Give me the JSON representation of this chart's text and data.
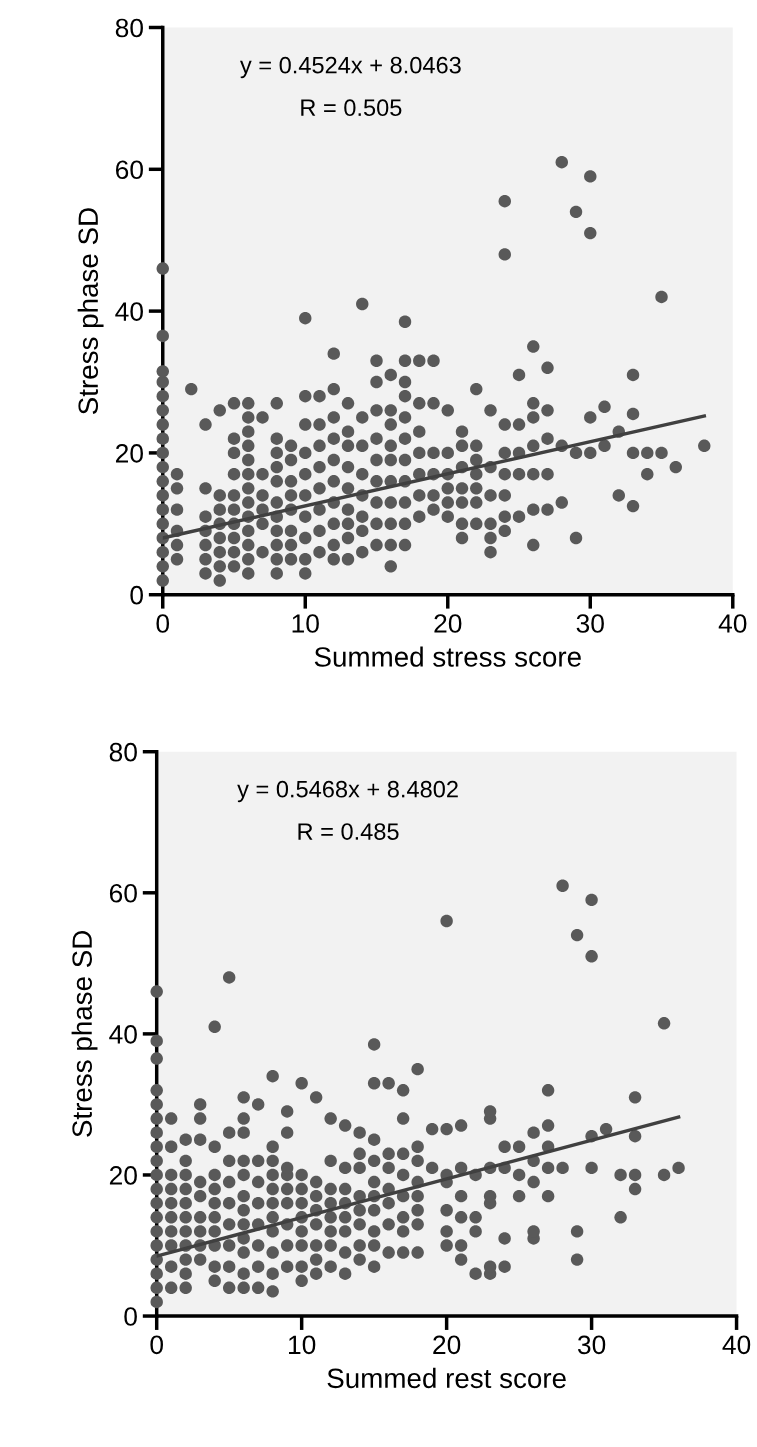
{
  "chart_data": [
    {
      "type": "scatter",
      "xlabel": "Summed stress score",
      "ylabel": "Stress phase SD",
      "xlim": [
        0,
        40
      ],
      "ylim": [
        0,
        80
      ],
      "xticks": [
        0,
        10,
        20,
        30,
        40
      ],
      "yticks": [
        0,
        20,
        40,
        60,
        80
      ],
      "grid": false,
      "annotations": [
        "y = 0.4524x + 8.0463",
        "R = 0.505"
      ],
      "series": [
        {
          "marker": "circle",
          "color": "#595959",
          "x": [
            0,
            0,
            0,
            0,
            0,
            0,
            0,
            0,
            0,
            0,
            0,
            0,
            0,
            0,
            0,
            0,
            0,
            0,
            1,
            1,
            1,
            1,
            1,
            1,
            2,
            3,
            3,
            3,
            3,
            3,
            3,
            3,
            4,
            4,
            4,
            4,
            4,
            4,
            4,
            4,
            5,
            5,
            5,
            5,
            5,
            5,
            5,
            5,
            5,
            5,
            6,
            6,
            6,
            6,
            6,
            6,
            6,
            6,
            6,
            6,
            6,
            6,
            6,
            7,
            7,
            7,
            7,
            7,
            7,
            8,
            8,
            8,
            8,
            8,
            8,
            8,
            8,
            8,
            8,
            8,
            9,
            9,
            9,
            9,
            9,
            9,
            9,
            9,
            10,
            10,
            10,
            10,
            10,
            10,
            10,
            10,
            10,
            10,
            11,
            11,
            11,
            11,
            11,
            11,
            11,
            11,
            12,
            12,
            12,
            12,
            12,
            12,
            12,
            12,
            12,
            12,
            13,
            13,
            13,
            13,
            13,
            13,
            13,
            13,
            13,
            14,
            14,
            14,
            14,
            14,
            14,
            14,
            14,
            15,
            15,
            15,
            15,
            15,
            15,
            15,
            15,
            15,
            16,
            16,
            16,
            16,
            16,
            16,
            16,
            16,
            16,
            16,
            17,
            17,
            17,
            17,
            17,
            17,
            17,
            17,
            17,
            17,
            17,
            18,
            18,
            18,
            18,
            18,
            18,
            18,
            19,
            19,
            19,
            19,
            19,
            19,
            20,
            20,
            20,
            20,
            20,
            20,
            21,
            21,
            21,
            21,
            21,
            21,
            21,
            22,
            22,
            22,
            22,
            22,
            22,
            22,
            23,
            23,
            23,
            23,
            23,
            23,
            24,
            24,
            24,
            24,
            24,
            24,
            24,
            24,
            25,
            25,
            25,
            25,
            25,
            26,
            26,
            26,
            26,
            26,
            26,
            26,
            27,
            27,
            27,
            27,
            27,
            28,
            28,
            28,
            29,
            29,
            29,
            30,
            30,
            30,
            30,
            31,
            31,
            32,
            32,
            33,
            33,
            33,
            33,
            34,
            34,
            35,
            35,
            36,
            38
          ],
          "values": [
            2,
            4,
            6,
            8,
            10,
            12,
            14,
            16,
            18,
            20,
            22,
            24,
            26,
            28,
            30,
            31.5,
            36.5,
            46,
            5,
            7,
            9,
            12,
            15,
            17,
            29,
            3,
            5,
            7,
            9,
            11,
            15,
            24,
            2,
            4,
            6,
            8,
            10,
            12,
            14,
            26,
            4,
            6,
            8,
            10,
            12,
            14,
            17,
            20,
            22,
            27,
            3,
            5,
            7,
            9,
            11,
            13,
            15,
            17,
            19,
            21,
            23,
            25,
            27,
            6,
            10,
            12,
            14,
            17,
            25,
            3,
            5,
            7,
            9,
            11,
            13,
            16,
            18,
            20,
            22,
            27,
            5,
            7,
            9,
            12,
            14,
            16,
            19,
            21,
            3,
            5,
            8,
            11,
            14,
            17,
            20,
            24,
            28,
            39,
            6,
            9,
            12,
            15,
            18,
            21,
            24,
            28,
            5,
            7,
            10,
            13,
            16,
            19,
            22,
            25,
            29,
            34,
            5,
            8,
            10,
            12,
            15,
            18,
            21,
            23,
            27,
            6,
            9,
            11,
            14,
            17,
            21,
            25,
            41,
            7,
            10,
            13,
            16,
            19,
            22,
            26,
            30,
            33,
            4,
            7,
            10,
            13,
            16,
            19,
            21,
            24,
            26,
            31,
            7,
            10,
            13,
            16,
            19,
            22,
            25,
            28,
            30,
            33,
            38.5,
            11,
            14,
            17,
            20,
            23,
            27,
            33,
            12,
            14,
            17,
            20,
            27,
            33,
            11,
            13,
            15,
            17,
            20,
            26,
            8,
            10,
            13,
            15,
            18,
            21,
            23,
            10,
            13,
            15,
            17,
            19,
            21,
            29,
            6,
            8,
            10,
            14,
            18,
            26,
            9,
            11,
            14,
            17,
            20,
            24,
            48,
            55.5,
            11,
            17,
            20,
            24,
            31,
            7,
            12,
            17,
            21,
            25,
            27,
            35,
            12,
            17,
            22,
            26,
            32,
            13,
            21,
            61,
            8,
            20,
            54,
            20,
            25,
            51,
            59,
            21,
            26.5,
            14,
            23,
            12.5,
            20,
            25.5,
            31,
            17,
            20,
            20,
            42,
            18,
            21
          ]
        },
        {
          "type": "line",
          "marker": "none",
          "color": "#404040",
          "x": [
            0,
            38
          ],
          "values": [
            8.0,
            25.2
          ]
        }
      ]
    },
    {
      "type": "scatter",
      "xlabel": "Summed rest score",
      "ylabel": "Stress phase SD",
      "xlim": [
        0,
        40
      ],
      "ylim": [
        0,
        80
      ],
      "xticks": [
        0,
        10,
        20,
        30,
        40
      ],
      "yticks": [
        0,
        20,
        40,
        60,
        80
      ],
      "grid": false,
      "annotations": [
        "y = 0.5468x + 8.4802",
        "R = 0.485"
      ],
      "series": [
        {
          "marker": "circle",
          "color": "#595959",
          "x": [
            0,
            0,
            0,
            0,
            0,
            0,
            0,
            0,
            0,
            0,
            0,
            0,
            0,
            0,
            0,
            0,
            0,
            0,
            0,
            1,
            1,
            1,
            1,
            1,
            1,
            1,
            1,
            1,
            1,
            2,
            2,
            2,
            2,
            2,
            2,
            2,
            2,
            2,
            2,
            2,
            3,
            3,
            3,
            3,
            3,
            3,
            3,
            3,
            3,
            4,
            4,
            4,
            4,
            4,
            4,
            4,
            4,
            4,
            4,
            5,
            5,
            5,
            5,
            5,
            5,
            5,
            5,
            5,
            6,
            6,
            6,
            6,
            6,
            6,
            6,
            6,
            6,
            6,
            6,
            6,
            7,
            7,
            7,
            7,
            7,
            7,
            7,
            7,
            8,
            8,
            8,
            8,
            8,
            8,
            8,
            8,
            8,
            8,
            8,
            9,
            9,
            9,
            9,
            9,
            9,
            9,
            9,
            9,
            10,
            10,
            10,
            10,
            10,
            10,
            10,
            10,
            10,
            11,
            11,
            11,
            11,
            11,
            11,
            11,
            11,
            12,
            12,
            12,
            12,
            12,
            12,
            12,
            12,
            13,
            13,
            13,
            13,
            13,
            13,
            13,
            13,
            14,
            14,
            14,
            14,
            14,
            14,
            14,
            14,
            15,
            15,
            15,
            15,
            15,
            15,
            15,
            15,
            15,
            15,
            16,
            16,
            16,
            16,
            16,
            16,
            16,
            17,
            17,
            17,
            17,
            17,
            17,
            17,
            17,
            18,
            18,
            18,
            18,
            18,
            18,
            18,
            18,
            19,
            19,
            20,
            20,
            20,
            20,
            20,
            20,
            20,
            21,
            21,
            21,
            21,
            21,
            21,
            22,
            22,
            22,
            22,
            23,
            23,
            23,
            23,
            23,
            23,
            23,
            24,
            24,
            24,
            24,
            25,
            25,
            25,
            26,
            26,
            26,
            26,
            26,
            27,
            27,
            27,
            27,
            27,
            28,
            28,
            29,
            29,
            29,
            30,
            30,
            30,
            30,
            31,
            32,
            32,
            33,
            33,
            33,
            33,
            35,
            35,
            36
          ],
          "values": [
            2,
            4,
            6,
            8,
            10,
            12,
            14,
            16,
            18,
            20,
            22,
            24,
            26,
            28,
            30,
            32,
            36.5,
            39,
            46,
            4,
            7,
            10,
            12,
            14,
            16,
            18,
            20,
            24,
            28,
            4,
            6,
            8,
            10,
            12,
            14,
            16,
            18,
            20,
            22,
            25,
            8,
            10,
            12,
            14,
            17,
            19,
            25,
            28,
            30,
            5,
            7,
            10,
            12,
            14,
            16,
            18,
            20,
            24,
            41,
            4,
            7,
            10,
            13,
            16,
            19,
            22,
            26,
            48,
            4,
            6,
            9,
            11,
            13,
            15,
            17,
            20,
            22,
            26,
            28,
            31,
            4,
            7,
            10,
            13,
            16,
            19,
            22,
            30,
            3.5,
            6,
            9,
            12,
            14,
            16,
            18,
            20,
            22,
            24,
            34,
            7,
            10,
            13,
            16,
            18,
            20,
            21,
            26,
            29,
            5,
            7,
            10,
            12,
            14,
            16,
            18,
            20,
            33,
            6,
            8,
            10,
            13,
            15,
            17,
            19,
            31,
            7,
            10,
            12,
            14,
            16,
            18,
            22,
            28,
            6,
            9,
            12,
            14,
            16,
            18,
            21,
            27,
            8,
            10,
            13,
            15,
            17,
            21,
            23,
            26,
            7,
            10,
            12,
            15,
            17,
            19,
            22,
            25,
            33,
            38.5,
            9,
            13,
            16,
            18,
            21,
            23,
            33,
            9,
            12,
            14,
            17,
            20,
            23,
            28,
            32,
            9,
            13,
            15,
            17,
            19,
            22,
            24,
            35,
            21,
            26.5,
            10,
            12,
            15,
            19,
            20,
            26.5,
            56,
            8,
            10,
            14,
            17,
            21,
            27,
            6,
            12,
            14,
            20,
            6,
            7,
            16,
            17,
            21,
            28,
            29,
            7,
            11,
            21,
            24,
            17,
            20,
            24,
            11,
            12,
            19,
            22,
            26,
            17,
            21,
            24,
            27,
            32,
            21,
            61,
            8,
            12,
            54,
            21,
            25.5,
            51,
            59,
            26.5,
            14,
            20,
            18,
            20,
            25.5,
            31,
            20,
            41.5,
            21
          ]
        },
        {
          "type": "line",
          "marker": "none",
          "color": "#404040",
          "x": [
            0,
            36
          ],
          "values": [
            8.5,
            28.2
          ]
        }
      ]
    }
  ]
}
